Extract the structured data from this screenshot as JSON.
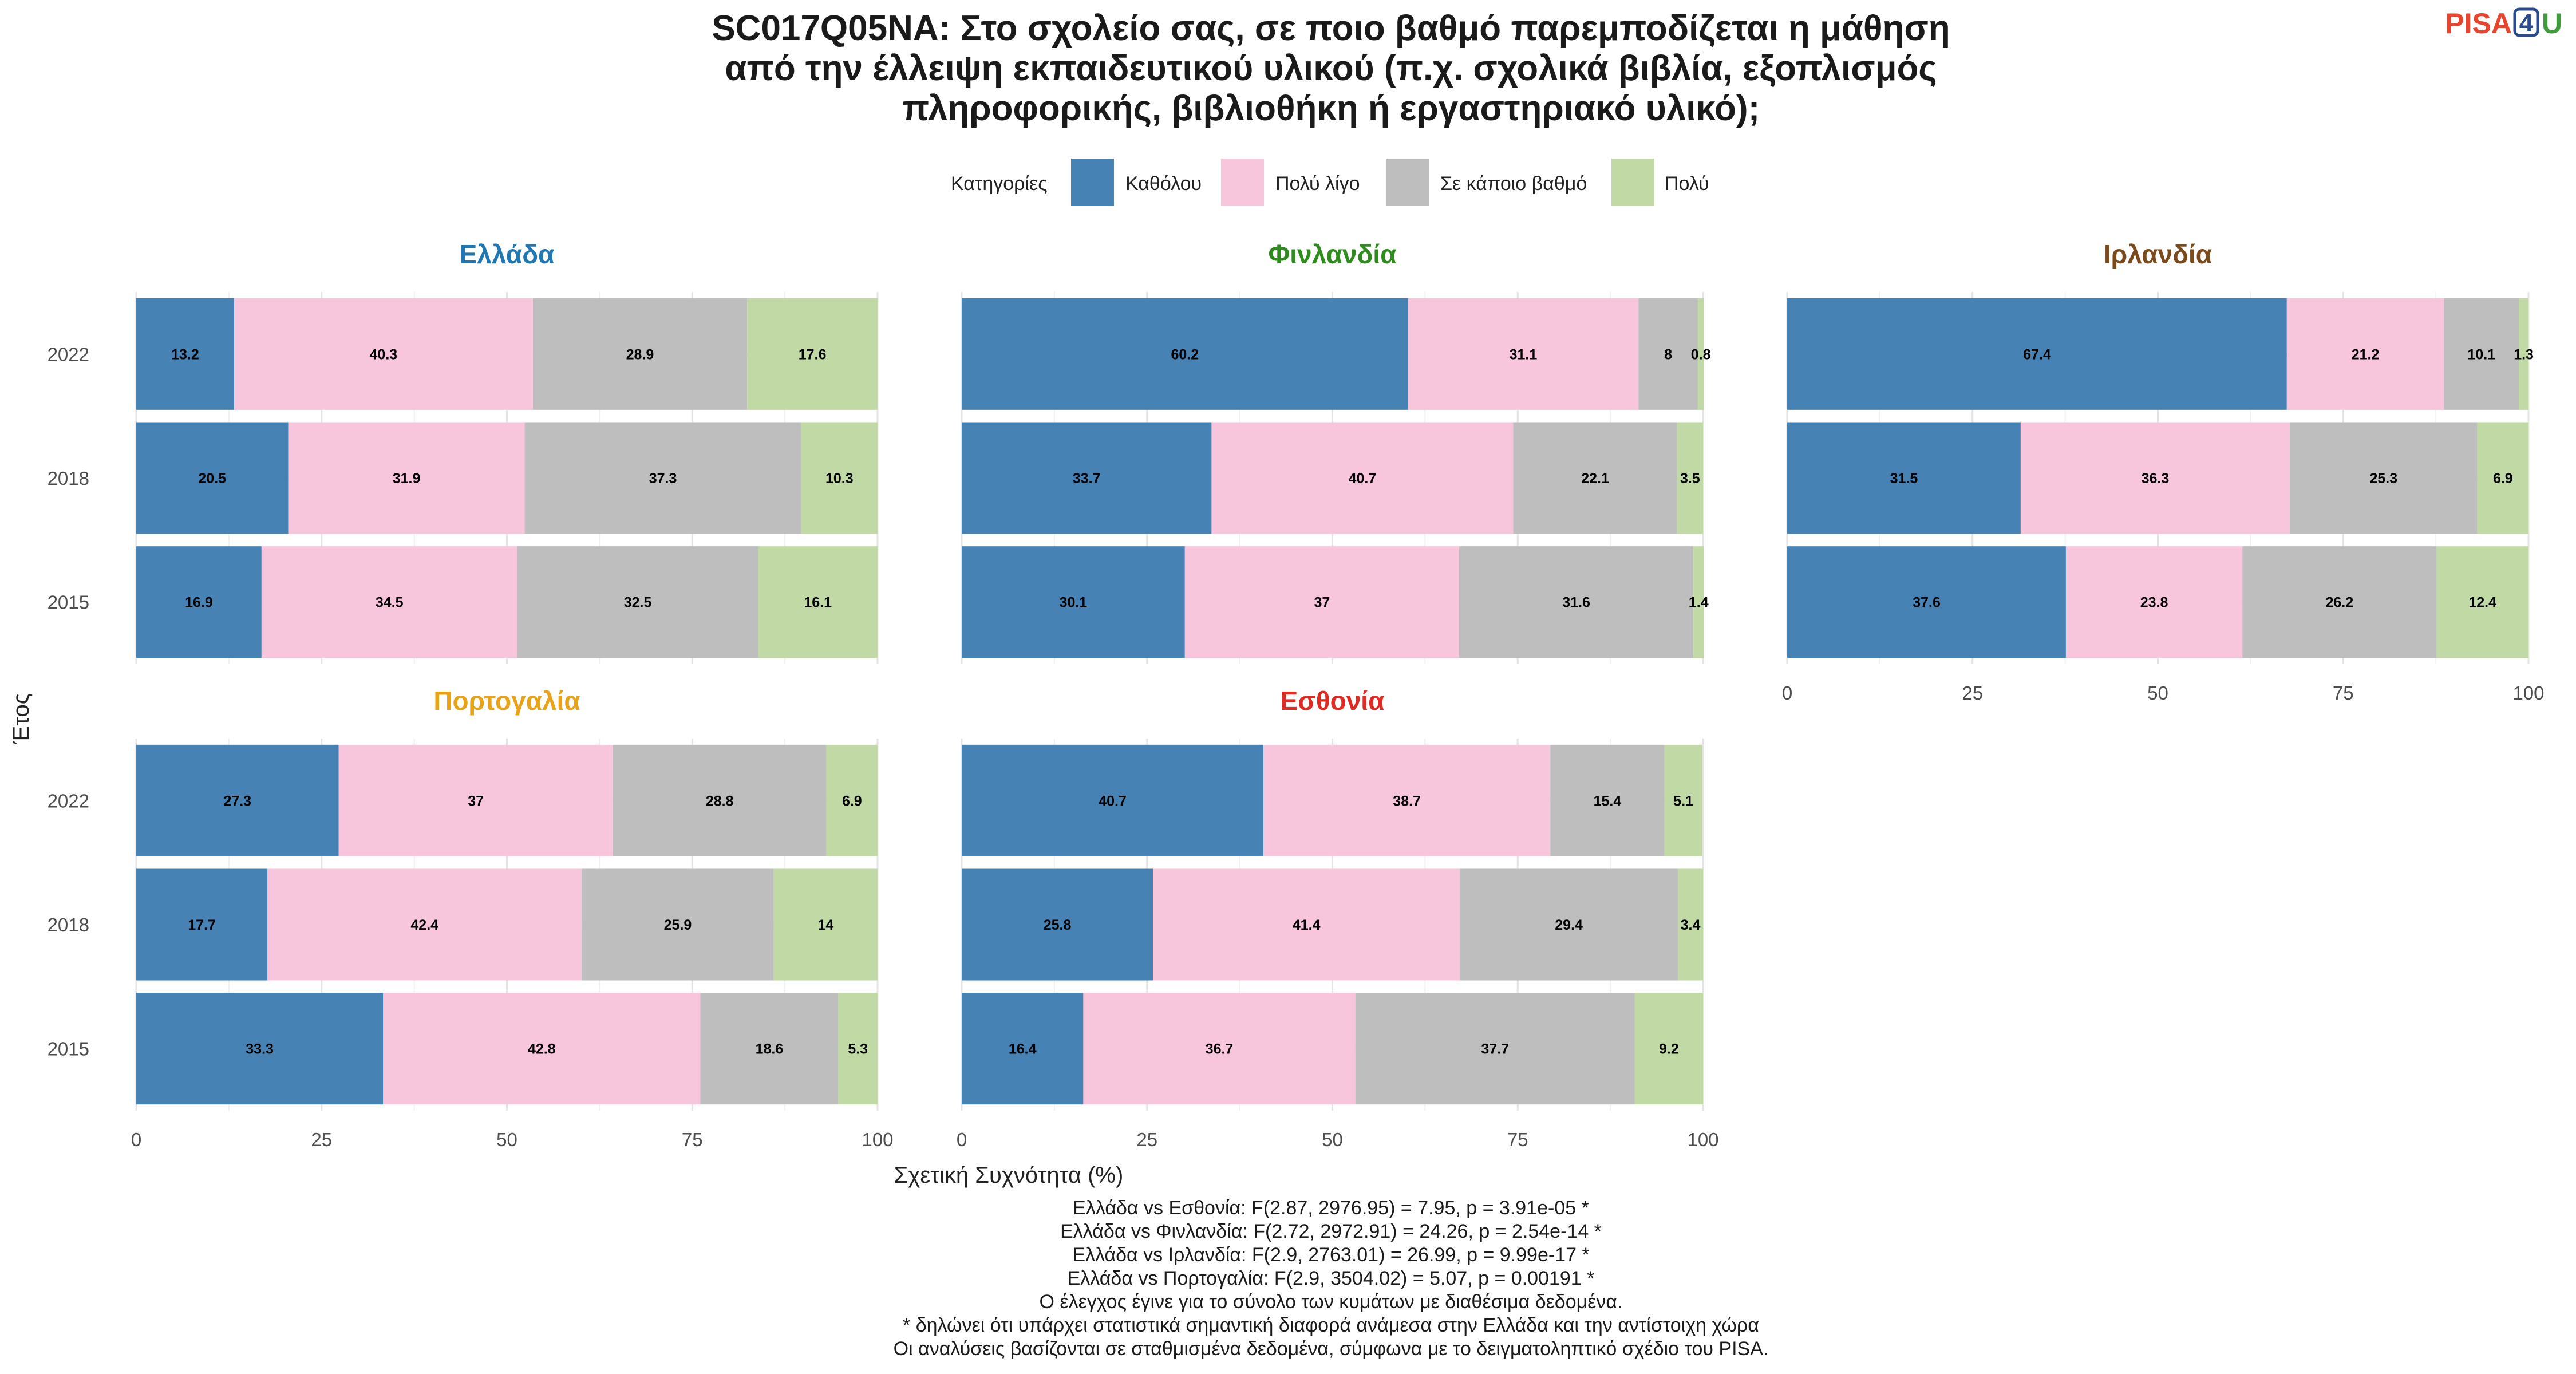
{
  "title_lines": [
    "SC017Q05NA: Στο σχολείο σας, σε ποιο βαθμό παρεμποδίζεται η μάθηση",
    "από την έλλειψη εκπαιδευτικού υλικού (π.χ. σχολικά βιβλία, εξοπλισμός",
    "πληροφορικής, βιβλιοθήκη ή εργαστηριακό υλικό);"
  ],
  "logo": {
    "pisa": "PISA",
    "four": "4",
    "u": "U"
  },
  "legend": {
    "title": "Κατηγορίες",
    "items": [
      {
        "label": "Καθόλου",
        "color": "#4682b4"
      },
      {
        "label": "Πολύ λίγο",
        "color": "#f7c6dc"
      },
      {
        "label": "Σε κάποιο βαθμό",
        "color": "#bebebe"
      },
      {
        "label": "Πολύ",
        "color": "#c1d9a5"
      }
    ]
  },
  "axis": {
    "xlabel": "Σχετική Συχνότητα (%)",
    "ylabel": "Έτος",
    "x_ticks": [
      "0",
      "25",
      "50",
      "75",
      "100"
    ]
  },
  "chart_data": {
    "type": "bar",
    "orientation": "horizontal",
    "stacked": true,
    "xlim": [
      0,
      100
    ],
    "years": [
      "2022",
      "2018",
      "2015"
    ],
    "panels": [
      {
        "title": "Ελλάδα",
        "title_color": "#1f77b4",
        "values": [
          [
            13.2,
            40.3,
            28.9,
            17.6
          ],
          [
            20.5,
            31.9,
            37.3,
            10.3
          ],
          [
            16.9,
            34.5,
            32.5,
            16.1
          ]
        ]
      },
      {
        "title": "Φινλανδία",
        "title_color": "#2e8b1e",
        "values": [
          [
            60.2,
            31.1,
            8,
            0.8
          ],
          [
            33.7,
            40.7,
            22.1,
            3.5
          ],
          [
            30.1,
            37,
            31.6,
            1.4
          ]
        ]
      },
      {
        "title": "Ιρλανδία",
        "title_color": "#7a4a1c",
        "values": [
          [
            67.4,
            21.2,
            10.1,
            1.3
          ],
          [
            31.5,
            36.3,
            25.3,
            6.9
          ],
          [
            37.6,
            23.8,
            26.2,
            12.4
          ]
        ]
      },
      {
        "title": "Πορτογαλία",
        "title_color": "#e8a319",
        "values": [
          [
            27.3,
            37,
            28.8,
            6.9
          ],
          [
            17.7,
            42.4,
            25.9,
            14
          ],
          [
            33.3,
            42.8,
            18.6,
            5.3
          ]
        ]
      },
      {
        "title": "Εσθονία",
        "title_color": "#e02a22",
        "values": [
          [
            40.7,
            38.7,
            15.4,
            5.1
          ],
          [
            25.8,
            41.4,
            29.4,
            3.4
          ],
          [
            16.4,
            36.7,
            37.7,
            9.2
          ]
        ]
      }
    ]
  },
  "notes": [
    "Ελλάδα vs Εσθονία: F(2.87, 2976.95) = 7.95, p = 3.91e-05 *",
    "Ελλάδα vs Φινλανδία: F(2.72, 2972.91) = 24.26, p = 2.54e-14 *",
    "Ελλάδα vs Ιρλανδία: F(2.9, 2763.01) = 26.99, p = 9.99e-17 *",
    "Ελλάδα vs Πορτογαλία: F(2.9, 3504.02) = 5.07, p = 0.00191 *",
    "Ο έλεγχος έγινε για το σύνολο των κυμάτων με διαθέσιμα δεδομένα.",
    "* δηλώνει ότι υπάρχει στατιστικά σημαντική διαφορά ανάμεσα στην Ελλάδα και την αντίστοιχη χώρα",
    "Οι αναλύσεις βασίζονται σε σταθμισμένα δεδομένα, σύμφωνα με το δειγματοληπτικό σχέδιο του PISA."
  ]
}
